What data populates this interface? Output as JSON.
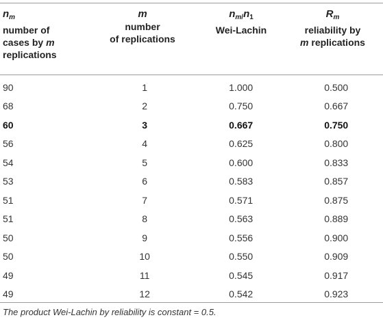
{
  "headers": [
    {
      "symbol": "n",
      "subscript": "m",
      "line1": "number of",
      "line2_pre": "cases by ",
      "line2_ital": "m",
      "line3": "replications"
    },
    {
      "symbol": "m",
      "line1": "number",
      "line2": "of replications"
    },
    {
      "symbol_num": "n",
      "symbol_num_sub": "m",
      "sep": "/",
      "symbol_den": "n",
      "symbol_den_sub": "1",
      "line1": "Wei-Lachin"
    },
    {
      "symbol": "R",
      "subscript": "m",
      "line1": "reliability by",
      "line2_ital": "m",
      "line2_post": " replications"
    }
  ],
  "rows": [
    {
      "n": "90",
      "m": "1",
      "ratio": "1.000",
      "r": "0.500",
      "bold": false
    },
    {
      "n": "68",
      "m": "2",
      "ratio": "0.750",
      "r": "0.667",
      "bold": false
    },
    {
      "n": "60",
      "m": "3",
      "ratio": "0.667",
      "r": "0.750",
      "bold": true
    },
    {
      "n": "56",
      "m": "4",
      "ratio": "0.625",
      "r": "0.800",
      "bold": false
    },
    {
      "n": "54",
      "m": "5",
      "ratio": "0.600",
      "r": "0.833",
      "bold": false
    },
    {
      "n": "53",
      "m": "6",
      "ratio": "0.583",
      "r": "0.857",
      "bold": false
    },
    {
      "n": "51",
      "m": "7",
      "ratio": "0.571",
      "r": "0.875",
      "bold": false
    },
    {
      "n": "51",
      "m": "8",
      "ratio": "0.563",
      "r": "0.889",
      "bold": false
    },
    {
      "n": "50",
      "m": "9",
      "ratio": "0.556",
      "r": "0.900",
      "bold": false
    },
    {
      "n": "50",
      "m": "10",
      "ratio": "0.550",
      "r": "0.909",
      "bold": false
    },
    {
      "n": "49",
      "m": "11",
      "ratio": "0.545",
      "r": "0.917",
      "bold": false
    },
    {
      "n": "49",
      "m": "12",
      "ratio": "0.542",
      "r": "0.923",
      "bold": false
    }
  ],
  "footnote": "The product Wei-Lachin by reliability is constant = 0.5."
}
